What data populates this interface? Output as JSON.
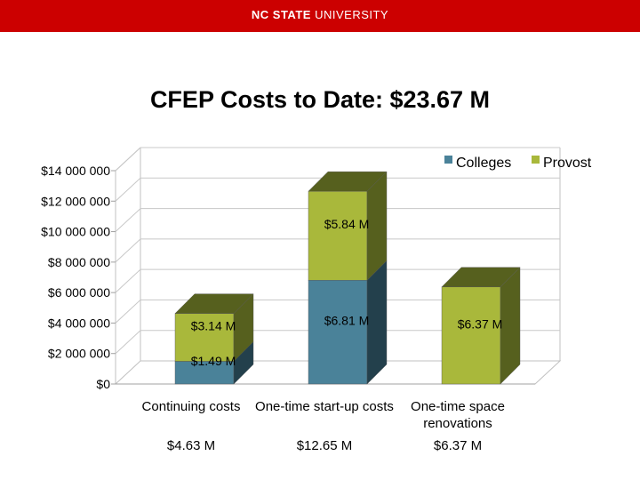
{
  "header": {
    "logo_bold": "NC STATE",
    "logo_light": "UNIVERSITY"
  },
  "colors": {
    "banner": "#cc0000",
    "colleges": "#4a8299",
    "colleges_side": "#23404c",
    "provost": "#a9b83b",
    "provost_side": "#56601e"
  },
  "chart_data": {
    "type": "bar",
    "stacked": true,
    "three_d": true,
    "title": "CFEP Costs to Date: $23.67 M",
    "categories": [
      [
        "Continuing costs"
      ],
      [
        "One-time start-up costs"
      ],
      [
        "One-time space",
        "renovations"
      ]
    ],
    "series": [
      {
        "name": "Colleges",
        "values": [
          1490000,
          6810000,
          0
        ],
        "labels": [
          "$1.49 M",
          "$6.81 M",
          ""
        ]
      },
      {
        "name": "Provost",
        "values": [
          3140000,
          5840000,
          6370000
        ],
        "labels": [
          "$3.14 M",
          "$5.84 M",
          "$6.37 M"
        ]
      }
    ],
    "totals": [
      "$4.63 M",
      "$12.65 M",
      "$6.37 M"
    ],
    "ylim": [
      0,
      14000000
    ],
    "yticks": [
      0,
      2000000,
      4000000,
      6000000,
      8000000,
      10000000,
      12000000,
      14000000
    ],
    "ytick_labels": [
      "$0",
      "$2 000 000",
      "$4 000 000",
      "$6 000 000",
      "$8 000 000",
      "$10 000 000",
      "$12 000 000",
      "$14 000 000"
    ],
    "grid": true,
    "legend_position": "top-right"
  }
}
